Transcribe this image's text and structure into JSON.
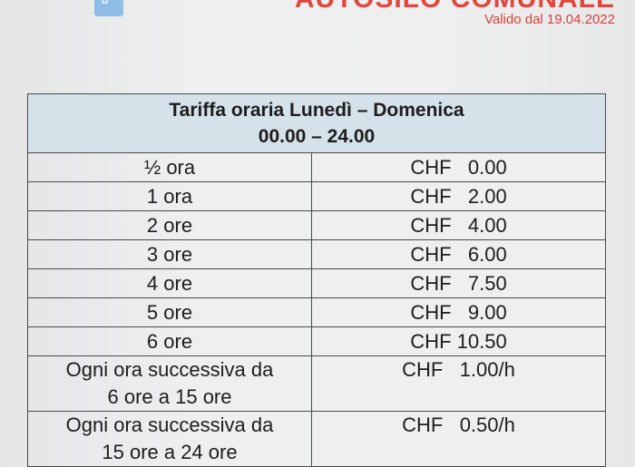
{
  "header": {
    "title": "AUTOSILO COMUNALE",
    "valid_from": "Valido dal 19.04.2022",
    "logo_color": "#8fbfe8",
    "accent_color": "#e0473f"
  },
  "table": {
    "heading_line1": "Tariffa oraria Lunedì – Domenica",
    "heading_line2": "00.00 – 24.00",
    "header_color": "#d5e2ea",
    "rows": [
      {
        "duration": "½ ora",
        "price": "CHF   0.00"
      },
      {
        "duration": "1 ora",
        "price": "CHF   2.00"
      },
      {
        "duration": "2 ore",
        "price": "CHF   4.00"
      },
      {
        "duration": "3 ore",
        "price": "CHF   6.00"
      },
      {
        "duration": "4 ore",
        "price": "CHF   7.50"
      },
      {
        "duration": "5 ore",
        "price": "CHF   9.00"
      },
      {
        "duration": "6 ore",
        "price": "CHF 10.50"
      }
    ],
    "extra_rows": [
      {
        "line1": "Ogni ora successiva da",
        "line2": "6 ore a 15 ore",
        "price": "CHF   1.00/h"
      },
      {
        "line1": "Ogni ora successiva da",
        "line2": "15 ore a 24 ore",
        "price": "CHF   0.50/h"
      }
    ]
  }
}
